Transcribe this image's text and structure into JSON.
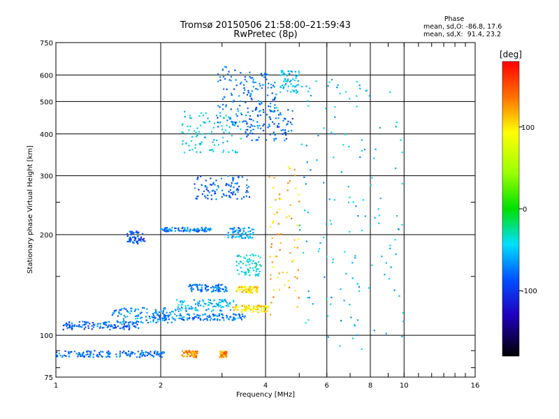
{
  "header": {
    "title_line1": "Tromsø 20150506 21:58:00–21:59:43",
    "title_line2": "RwPretec (8p)",
    "phase_title": "Phase",
    "phase_o": "mean, sd,O: -86.8, 17.6",
    "phase_x": "mean, sd,X:  91.4, 23.2"
  },
  "colorbar": {
    "unit_label": "[deg]",
    "ticks": [
      {
        "value": 100,
        "label": "100"
      },
      {
        "value": 0,
        "label": "0"
      },
      {
        "value": -100,
        "label": "-100"
      }
    ],
    "range": [
      -180,
      180
    ]
  },
  "chart_data": {
    "type": "scatter",
    "title": "Tromsø 20150506 21:58:00–21:59:43 RwPretec (8p)",
    "xlabel": "Frequency [MHz]",
    "ylabel": "Stationary phase Virtual Height [km]",
    "x_scale": "log",
    "y_scale": "log",
    "xlim": [
      1,
      16
    ],
    "ylim": [
      75,
      750
    ],
    "grid": true,
    "x_ticks": [
      {
        "value": 1,
        "label": "1"
      },
      {
        "value": 2,
        "label": "2"
      },
      {
        "value": 4,
        "label": "4"
      },
      {
        "value": 6,
        "label": "6"
      },
      {
        "value": 8,
        "label": "8"
      },
      {
        "value": 10,
        "label": "10"
      },
      {
        "value": 16,
        "label": "16"
      }
    ],
    "y_ticks": [
      {
        "value": 75,
        "label": "75"
      },
      {
        "value": 100,
        "label": "100"
      },
      {
        "value": 200,
        "label": "200"
      },
      {
        "value": 300,
        "label": "300"
      },
      {
        "value": 400,
        "label": "400"
      },
      {
        "value": 500,
        "label": "500"
      },
      {
        "value": 600,
        "label": "600"
      },
      {
        "value": 750,
        "label": "750"
      }
    ],
    "color_axis": "Phase [deg]",
    "clusters": [
      {
        "f_range": [
          1.0,
          2.05
        ],
        "h_range": [
          86,
          90
        ],
        "phase": -100
      },
      {
        "f_range": [
          2.3,
          2.55
        ],
        "h_range": [
          86,
          90
        ],
        "phase": 130
      },
      {
        "f_range": [
          2.95,
          3.1
        ],
        "h_range": [
          86,
          90
        ],
        "phase": 135
      },
      {
        "f_range": [
          1.05,
          1.75
        ],
        "h_range": [
          104,
          110
        ],
        "phase": -105
      },
      {
        "f_range": [
          1.45,
          2.2
        ],
        "h_range": [
          109,
          121
        ],
        "phase": -90
      },
      {
        "f_range": [
          1.9,
          3.5
        ],
        "h_range": [
          111,
          116
        ],
        "phase": -95
      },
      {
        "f_range": [
          2.2,
          3.3
        ],
        "h_range": [
          118,
          128
        ],
        "phase": -75
      },
      {
        "f_range": [
          2.4,
          3.1
        ],
        "h_range": [
          135,
          142
        ],
        "phase": -100
      },
      {
        "f_range": [
          3.2,
          4.1
        ],
        "h_range": [
          117,
          123
        ],
        "phase": 105
      },
      {
        "f_range": [
          3.3,
          3.8
        ],
        "h_range": [
          134,
          140
        ],
        "phase": 110
      },
      {
        "f_range": [
          3.3,
          3.9
        ],
        "h_range": [
          150,
          175
        ],
        "phase": -55
      },
      {
        "f_range": [
          1.6,
          1.8
        ],
        "h_range": [
          188,
          205
        ],
        "phase": -115
      },
      {
        "f_range": [
          2.0,
          2.8
        ],
        "h_range": [
          204,
          210
        ],
        "phase": -95
      },
      {
        "f_range": [
          3.1,
          3.7
        ],
        "h_range": [
          195,
          210
        ],
        "phase": -85
      },
      {
        "f_range": [
          2.5,
          3.6
        ],
        "h_range": [
          255,
          300
        ],
        "phase": -105
      },
      {
        "f_range": [
          2.3,
          3.4
        ],
        "h_range": [
          350,
          470
        ],
        "phase": -60
      },
      {
        "f_range": [
          2.9,
          3.6
        ],
        "h_range": [
          420,
          640
        ],
        "phase": -100
      },
      {
        "f_range": [
          3.6,
          4.3
        ],
        "h_range": [
          460,
          620
        ],
        "phase": -95
      },
      {
        "f_range": [
          4.4,
          5.0
        ],
        "h_range": [
          530,
          620
        ],
        "phase": -75
      },
      {
        "f_range": [
          3.5,
          4.8
        ],
        "h_range": [
          380,
          480
        ],
        "phase": -105
      },
      {
        "f_range": [
          4.1,
          5.0
        ],
        "h_range": [
          115,
          320
        ],
        "phase": 120
      },
      {
        "f_range": [
          5.0,
          10.0
        ],
        "h_range": [
          90,
          600
        ],
        "phase": -70
      }
    ]
  }
}
